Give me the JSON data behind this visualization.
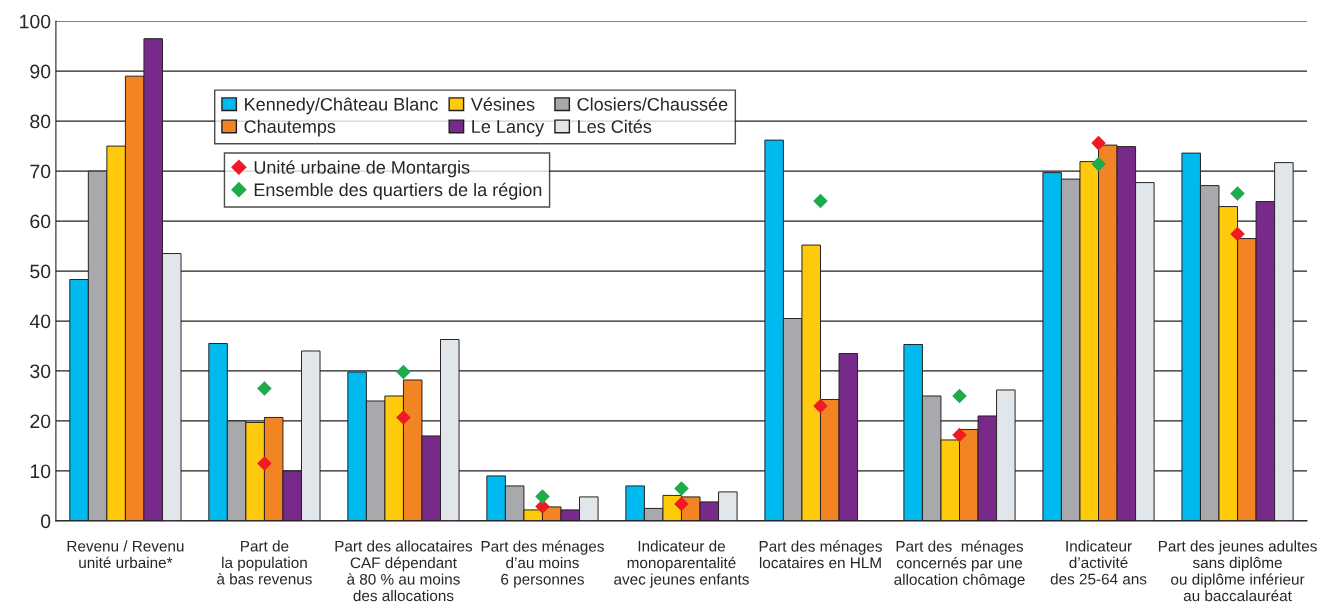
{
  "chart_data": {
    "type": "bar",
    "categories": [
      "Revenu / Revenu\nunité urbaine*",
      "Part de\nla population\nà bas revenus",
      "Part des allocataires\nCAF dépendant\nà 80 % au moins\ndes allocations",
      "Part des ménages\nd’au moins\n6 personnes",
      "Indicateur de\nmonoparentalité\navec jeunes enfants",
      "Part des ménages\nlocataires en HLM",
      "Part des  ménages\nconcernés par une\nallocation chômage",
      "Indicateur\nd’activité\ndes 25-64 ans",
      "Part des jeunes adultes\nsans diplôme\nou diplôme inférieur\nau baccalauréat"
    ],
    "series": [
      {
        "name": "Kennedy/Château Blanc",
        "color": "#00b9ef",
        "values": [
          48.3,
          35.5,
          29.8,
          9,
          7,
          76.2,
          35.3,
          69.7,
          73.6
        ]
      },
      {
        "name": "Closiers/Chaussée",
        "color": "#a7a9ac",
        "values": [
          70,
          20,
          24,
          7,
          2.5,
          40.5,
          25,
          68.4,
          67.1
        ]
      },
      {
        "name": "Vésines",
        "color": "#ffc90c",
        "values": [
          75,
          19.7,
          25,
          2.2,
          5.1,
          55.2,
          16.2,
          71.9,
          62.9
        ]
      },
      {
        "name": "Chautemps",
        "color": "#f28423",
        "values": [
          89,
          20.7,
          28.2,
          2.8,
          4.8,
          24.3,
          18.3,
          75.2,
          56.5
        ]
      },
      {
        "name": "Le Lancy",
        "color": "#772a89",
        "values": [
          96.5,
          10,
          17,
          2.2,
          3.8,
          33.5,
          21,
          74.9,
          63.9
        ]
      },
      {
        "name": "Les Cités",
        "color": "#e1e6ea",
        "values": [
          53.5,
          34,
          36.3,
          4.8,
          5.8,
          null,
          26.2,
          67.7,
          71.7
        ]
      },
      {
        "name": "Unité urbaine de Montargis",
        "type": "scatter",
        "marker": "diamond",
        "color": "#ed1c24",
        "values": [
          null,
          11.5,
          20.7,
          2.9,
          3.4,
          23,
          17.2,
          75.6,
          57.4
        ]
      },
      {
        "name": "Ensemble des quartiers de la région",
        "type": "scatter",
        "marker": "diamond",
        "color": "#1eab4b",
        "values": [
          null,
          26.5,
          29.8,
          4.9,
          6.5,
          64,
          25,
          71.4,
          65.5
        ]
      }
    ],
    "ylim": [
      0,
      100
    ],
    "yticks": [
      0,
      10,
      20,
      30,
      40,
      50,
      60,
      70,
      80,
      90,
      100
    ],
    "grid": "y",
    "legend": "top"
  }
}
